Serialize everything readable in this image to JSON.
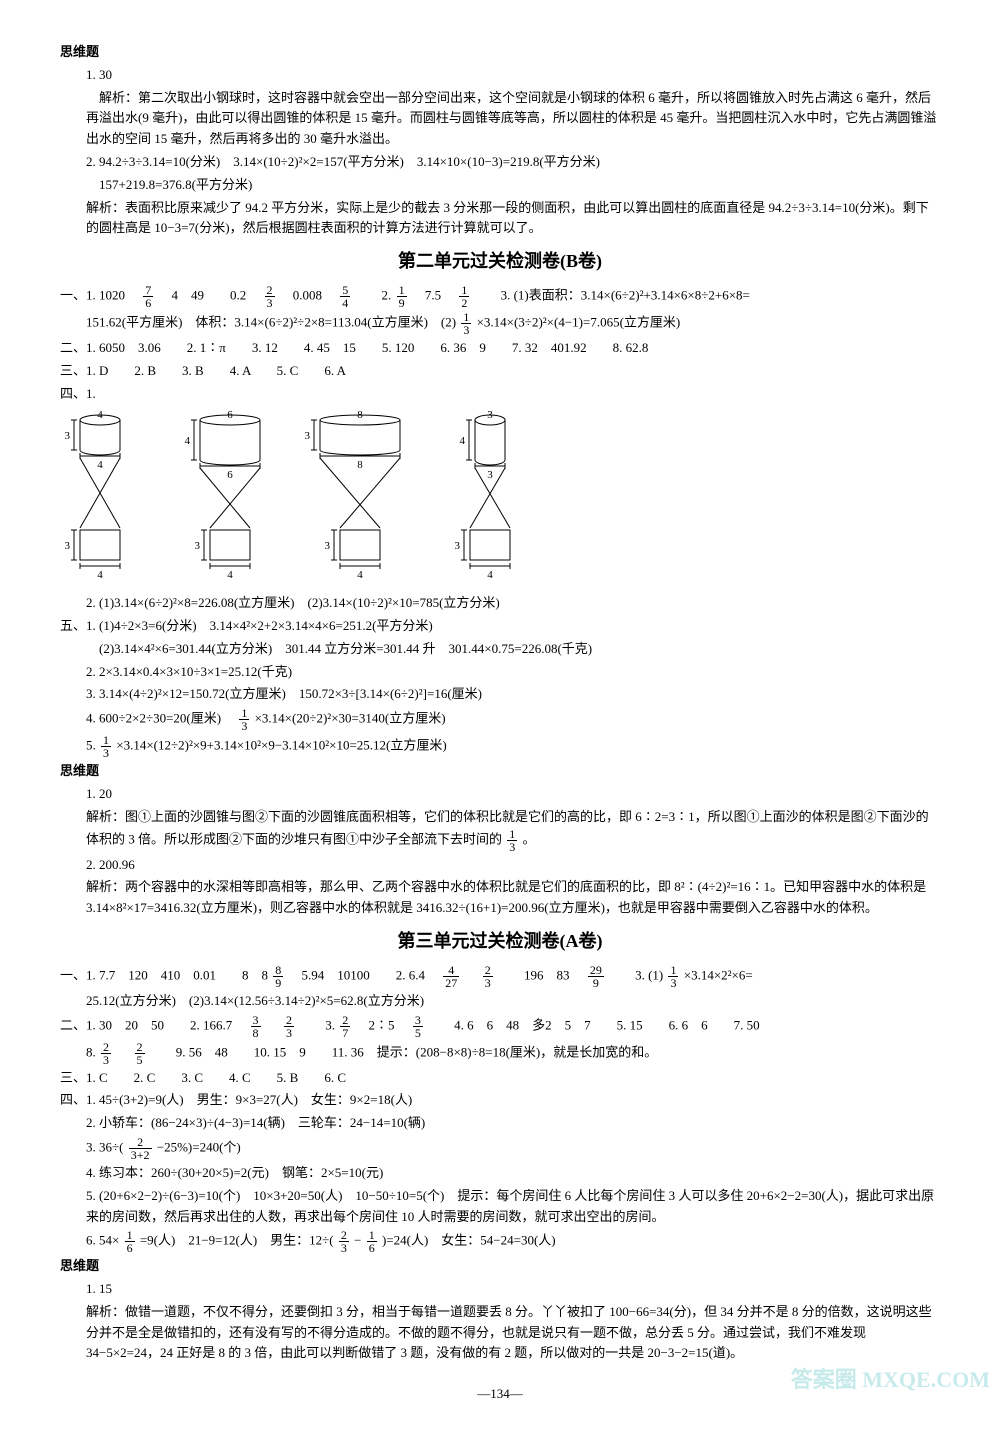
{
  "siwei1_header": "思维题",
  "siwei1": {
    "l1": "1. 30",
    "l2": "解析：第二次取出小钢球时，这时容器中就会空出一部分空间出来，这个空间就是小钢球的体积 6 毫升，所以将圆锥放入时先占满这 6 毫升，然后再溢出水(9 毫升)，由此可以得出圆锥的体积是 15 毫升。而圆柱与圆锥等底等高，所以圆柱的体积是 45 毫升。当把圆柱沉入水中时，它先占满圆锥溢出水的空间 15 毫升，然后再将多出的 30 毫升水溢出。",
    "l3": "2. 94.2÷3÷3.14=10(分米)　3.14×(10÷2)²×2=157(平方分米)　3.14×10×(10−3)=219.8(平方分米)",
    "l4": "157+219.8=376.8(平方分米)",
    "l5": "解析：表面积比原来减少了 94.2 平方分米，实际上是少的截去 3 分米那一段的侧面积，由此可以算出圆柱的底面直径是 94.2÷3÷3.14=10(分米)。剩下的圆柱高是 10−3=7(分米)，然后根据圆柱表面积的计算方法进行计算就可以了。"
  },
  "title2B": "第二单元过关检测卷(B卷)",
  "sec2B_1": {
    "leading": "一、1. 1020　",
    "after_f1": "　4　49　　0.2　",
    "after_f2": "　0.008　",
    "after_f3": "　　2.",
    "after_f4": "　7.5　",
    "after_f5": "　　3. (1)表面积：3.14×(6÷2)²+3.14×6×8÷2+6×8=",
    "l2a": "151.62(平方厘米)　体积：3.14×(6÷2)²÷2×8=113.04(立方厘米)　(2)",
    "l2b": "×3.14×(3÷2)²×(4−1)=7.065(立方厘米)"
  },
  "sec2B_2": "二、1. 6050　3.06　　2. 1∶π　　3. 12　　4. 45　15　　5. 120　　6. 36　9　　7. 32　401.92　　8. 62.8",
  "sec2B_3": "三、1. D　　2. B　　3. B　　4. A　　5. C　　6. A",
  "sec2B_4label": "四、1.",
  "diagram": {
    "cylinders": [
      {
        "top_w": 4,
        "top_h": 3,
        "bot_w": 4,
        "bot_h": 3
      },
      {
        "top_w": 6,
        "top_h": 4,
        "bot_w": 4,
        "bot_h": 3
      },
      {
        "top_w": 8,
        "top_h": 3,
        "bot_w": 4,
        "bot_h": 3
      },
      {
        "top_w": 3,
        "top_h": 4,
        "bot_w": 4,
        "bot_h": 3
      }
    ],
    "stroke": "#000000",
    "fontsize": 11
  },
  "sec2B_4_2": "2. (1)3.14×(6÷2)²×8=226.08(立方厘米)　(2)3.14×(10÷2)²×10=785(立方分米)",
  "sec2B_5": {
    "l1": "五、1. (1)4÷2×3=6(分米)　3.14×4²×2+2×3.14×4×6=251.2(平方分米)",
    "l2": "(2)3.14×4²×6=301.44(立方分米)　301.44 立方分米=301.44 升　301.44×0.75=226.08(千克)",
    "l3": "2. 2×3.14×0.4×3×10÷3×1=25.12(千克)",
    "l4": "3. 3.14×(4÷2)²×12=150.72(立方厘米)　150.72×3÷[3.14×(6÷2)²]=16(厘米)",
    "l5a": "4. 600÷2×2÷30=20(厘米)　",
    "l5b": "×3.14×(20÷2)²×30=3140(立方厘米)",
    "l6a": "5. ",
    "l6b": "×3.14×(12÷2)²×9+3.14×10²×9−3.14×10²×10=25.12(立方厘米)"
  },
  "siwei2_header": "思维题",
  "siwei2": {
    "l1": "1. 20",
    "l2a": "解析：图①上面的沙圆锥与图②下面的沙圆锥底面积相等，它们的体积比就是它们的高的比，即 6∶2=3∶1，所以图①上面沙的体积是图②下面沙的体积的 3 倍。所以形成图②下面的沙堆只有图①中沙子全部流下去时间的",
    "l2b": "。",
    "l3": "2. 200.96",
    "l4": "解析：两个容器中的水深相等即高相等，那么甲、乙两个容器中水的体积比就是它们的底面积的比，即 8²∶(4÷2)²=16∶1。已知甲容器中水的体积是 3.14×8²×17=3416.32(立方厘米)，则乙容器中水的体积就是 3416.32÷(16+1)=200.96(立方厘米)，也就是甲容器中需要倒入乙容器中水的体积。"
  },
  "title3A": "第三单元过关检测卷(A卷)",
  "sec3A_1": {
    "leading": "一、1. 7.7　120　410　0.01　　8　8",
    "after_f1": "　5.94　10100　　2. 6.4　",
    "after_f2": "　",
    "after_f3": "　　196　83　",
    "after_f4": "　　3. (1)",
    "after_f5": "×3.14×2²×6=",
    "l2": "25.12(立方分米)　(2)3.14×(12.56÷3.14÷2)²×5=62.8(立方分米)"
  },
  "sec3A_2": {
    "leading": "二、1. 30　20　50　　2. 166.7　",
    "after_f1": "　",
    "after_f2": "　　3. ",
    "after_f3": "　2∶5　",
    "after_f4": "　　4. 6　6　48　多2　5　7　　5. 15　　6. 6　6　　7. 50",
    "l2a": "8. ",
    "l2b": "　",
    "l2c": "　　9. 56　48　　10. 15　9　　11. 36　提示：(208−8×8)÷8=18(厘米)，就是长加宽的和。"
  },
  "sec3A_3": "三、1. C　　2. C　　3. C　　4. C　　5. B　　6. C",
  "sec3A_4": {
    "l1": "四、1. 45÷(3+2)=9(人)　男生：9×3=27(人)　女生：9×2=18(人)",
    "l2": "2. 小轿车：(86−24×3)÷(4−3)=14(辆)　三轮车：24−14=10(辆)",
    "l3a": "3. 36÷(",
    "l3b": "−25%)=240(个)",
    "l4": "4. 练习本：260÷(30+20×5)=2(元)　钢笔：2×5=10(元)",
    "l5": "5. (20+6×2−2)÷(6−3)=10(个)　10×3+20=50(人)　10−50÷10=5(个)　提示：每个房间住 6 人比每个房间住 3 人可以多住 20+6×2−2=30(人)，据此可求出原来的房间数，然后再求出住的人数，再求出每个房间住 10 人时需要的房间数，就可求出空出的房间。",
    "l6a": "6. 54×",
    "l6b": "=9(人)　21−9=12(人)　男生：12÷(",
    "l6c": "−",
    "l6d": ")=24(人)　女生：54−24=30(人)"
  },
  "siwei3_header": "思维题",
  "siwei3": {
    "l1": "1. 15",
    "l2": "解析：做错一道题，不仅不得分，还要倒扣 3 分，相当于每错一道题要丢 8 分。丫丫被扣了 100−66=34(分)，但 34 分并不是 8 分的倍数，这说明这些分并不是全是做错扣的，还有没有写的不得分造成的。不做的题不得分，也就是说只有一题不做，总分丢 5 分。通过尝试，我们不难发现 34−5×2=24，24 正好是 8 的 3 倍，由此可以判断做错了 3 题，没有做的有 2 题，所以做对的一共是 20−3−2=15(道)。"
  },
  "pagenum": "—134—",
  "watermark": "答案圈  MXQE.COM"
}
